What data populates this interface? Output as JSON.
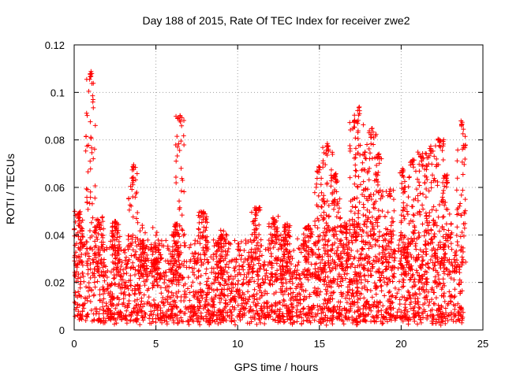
{
  "chart_data": {
    "type": "scatter",
    "title": "Day 188 of 2015, Rate Of TEC Index for receiver zwe2",
    "xlabel": "GPS time / hours",
    "ylabel": "ROTI / TECUs",
    "xlim": [
      0,
      25
    ],
    "ylim": [
      0,
      0.12
    ],
    "grid": true,
    "marker": "+",
    "color": "#ff0000",
    "x_ticks": [
      0,
      5,
      10,
      15,
      20,
      25
    ],
    "x_tick_labels": [
      "0",
      "5",
      "10",
      "15",
      "20",
      "25"
    ],
    "y_ticks": [
      0,
      0.02,
      0.04,
      0.06,
      0.08,
      0.1,
      0.12
    ],
    "y_tick_labels": [
      "0",
      "0.02",
      "0.04",
      "0.06",
      "0.08",
      "0.1",
      "0.12"
    ],
    "series": [
      {
        "name": "ROTI",
        "generator": {
          "x_range": [
            0,
            23.8
          ],
          "baseline_density": 2600,
          "baseline_min": 0.002,
          "baseline_max": 0.035,
          "bursts": [
            {
              "x": 0.3,
              "y_max": 0.05
            },
            {
              "x": 1.0,
              "y_max": 0.109
            },
            {
              "x": 1.5,
              "y_max": 0.048
            },
            {
              "x": 2.5,
              "y_max": 0.046
            },
            {
              "x": 3.6,
              "y_max": 0.071
            },
            {
              "x": 4.2,
              "y_max": 0.038
            },
            {
              "x": 5.0,
              "y_max": 0.037
            },
            {
              "x": 6.2,
              "y_max": 0.045
            },
            {
              "x": 6.5,
              "y_max": 0.091
            },
            {
              "x": 7.9,
              "y_max": 0.05
            },
            {
              "x": 9.0,
              "y_max": 0.04
            },
            {
              "x": 11.1,
              "y_max": 0.052
            },
            {
              "x": 12.2,
              "y_max": 0.048
            },
            {
              "x": 12.9,
              "y_max": 0.045
            },
            {
              "x": 14.3,
              "y_max": 0.044
            },
            {
              "x": 15.0,
              "y_max": 0.069
            },
            {
              "x": 15.5,
              "y_max": 0.079
            },
            {
              "x": 16.0,
              "y_max": 0.066
            },
            {
              "x": 16.6,
              "y_max": 0.044
            },
            {
              "x": 17.1,
              "y_max": 0.088
            },
            {
              "x": 17.4,
              "y_max": 0.094
            },
            {
              "x": 17.8,
              "y_max": 0.075
            },
            {
              "x": 18.2,
              "y_max": 0.085
            },
            {
              "x": 18.6,
              "y_max": 0.075
            },
            {
              "x": 19.3,
              "y_max": 0.06
            },
            {
              "x": 20.1,
              "y_max": 0.068
            },
            {
              "x": 20.7,
              "y_max": 0.072
            },
            {
              "x": 21.3,
              "y_max": 0.075
            },
            {
              "x": 21.8,
              "y_max": 0.078
            },
            {
              "x": 22.3,
              "y_max": 0.081
            },
            {
              "x": 22.8,
              "y_max": 0.066
            },
            {
              "x": 23.7,
              "y_max": 0.088
            }
          ]
        }
      }
    ]
  }
}
